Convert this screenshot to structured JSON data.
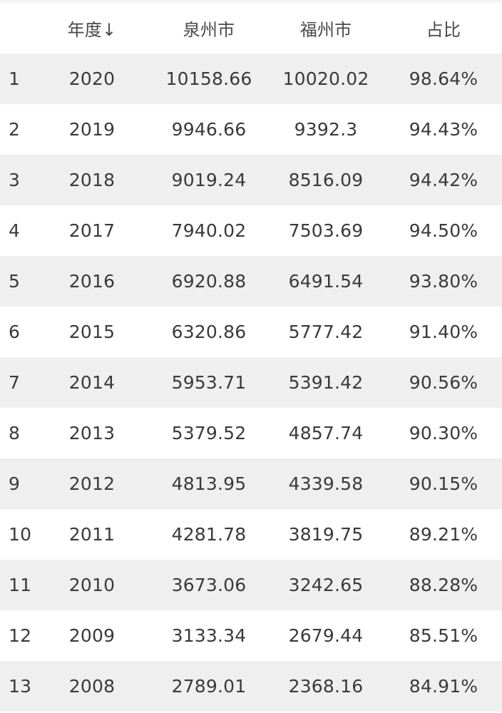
{
  "table": {
    "headers": {
      "index": "",
      "year": "年度↓",
      "quanzhou": "泉州市",
      "fuzhou": "福州市",
      "ratio": "占比"
    },
    "rows": [
      {
        "index": "1",
        "year": "2020",
        "quanzhou": "10158.66",
        "fuzhou": "10020.02",
        "ratio": "98.64%"
      },
      {
        "index": "2",
        "year": "2019",
        "quanzhou": "9946.66",
        "fuzhou": "9392.3",
        "ratio": "94.43%"
      },
      {
        "index": "3",
        "year": "2018",
        "quanzhou": "9019.24",
        "fuzhou": "8516.09",
        "ratio": "94.42%"
      },
      {
        "index": "4",
        "year": "2017",
        "quanzhou": "7940.02",
        "fuzhou": "7503.69",
        "ratio": "94.50%"
      },
      {
        "index": "5",
        "year": "2016",
        "quanzhou": "6920.88",
        "fuzhou": "6491.54",
        "ratio": "93.80%"
      },
      {
        "index": "6",
        "year": "2015",
        "quanzhou": "6320.86",
        "fuzhou": "5777.42",
        "ratio": "91.40%"
      },
      {
        "index": "7",
        "year": "2014",
        "quanzhou": "5953.71",
        "fuzhou": "5391.42",
        "ratio": "90.56%"
      },
      {
        "index": "8",
        "year": "2013",
        "quanzhou": "5379.52",
        "fuzhou": "4857.74",
        "ratio": "90.30%"
      },
      {
        "index": "9",
        "year": "2012",
        "quanzhou": "4813.95",
        "fuzhou": "4339.58",
        "ratio": "90.15%"
      },
      {
        "index": "10",
        "year": "2011",
        "quanzhou": "4281.78",
        "fuzhou": "3819.75",
        "ratio": "89.21%"
      },
      {
        "index": "11",
        "year": "2010",
        "quanzhou": "3673.06",
        "fuzhou": "3242.65",
        "ratio": "88.28%"
      },
      {
        "index": "12",
        "year": "2009",
        "quanzhou": "3133.34",
        "fuzhou": "2679.44",
        "ratio": "85.51%"
      },
      {
        "index": "13",
        "year": "2008",
        "quanzhou": "2789.01",
        "fuzhou": "2368.16",
        "ratio": "84.91%"
      }
    ]
  },
  "colors": {
    "row_shade": "#efefef",
    "row_plain": "#ffffff",
    "text": "#3a3a3a"
  }
}
